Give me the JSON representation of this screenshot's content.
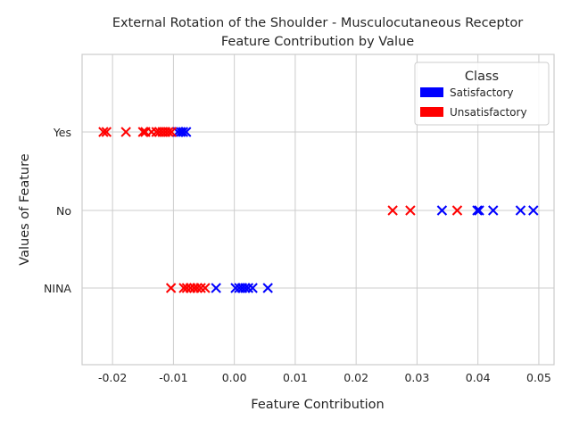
{
  "chart_data": {
    "type": "scatter",
    "title": "External Rotation of the Shoulder - Musculocutaneous Receptor",
    "subtitle": "Feature Contribution by Value",
    "xlabel": "Feature Contribution",
    "ylabel": "Values of Feature",
    "xlim": [
      -0.025,
      0.0525
    ],
    "x_ticks": [
      "-0.02",
      "-0.01",
      "0.00",
      "0.01",
      "0.02",
      "0.03",
      "0.04",
      "0.05"
    ],
    "x_tick_values": [
      -0.02,
      -0.01,
      0.0,
      0.01,
      0.02,
      0.03,
      0.04,
      0.05
    ],
    "categories": [
      "Yes",
      "No",
      "NINA"
    ],
    "grid": true,
    "legend": {
      "title": "Class",
      "placement": "top-right",
      "entries": [
        {
          "label": "Satisfactory",
          "color": "#0000ff"
        },
        {
          "label": "Unsatisfactory",
          "color": "#ff0000"
        }
      ]
    },
    "marker": "x",
    "series": [
      {
        "name": "Satisfactory",
        "color": "#0000ff",
        "points": [
          {
            "category": "Yes",
            "x": -0.0093
          },
          {
            "category": "Yes",
            "x": -0.0088
          },
          {
            "category": "Yes",
            "x": -0.0084
          },
          {
            "category": "Yes",
            "x": -0.0079
          },
          {
            "category": "No",
            "x": 0.0341
          },
          {
            "category": "No",
            "x": 0.0399
          },
          {
            "category": "No",
            "x": 0.0402
          },
          {
            "category": "No",
            "x": 0.0425
          },
          {
            "category": "No",
            "x": 0.047
          },
          {
            "category": "No",
            "x": 0.0491
          },
          {
            "category": "NINA",
            "x": -0.003
          },
          {
            "category": "NINA",
            "x": 0.0002
          },
          {
            "category": "NINA",
            "x": 0.0008
          },
          {
            "category": "NINA",
            "x": 0.0013
          },
          {
            "category": "NINA",
            "x": 0.0018
          },
          {
            "category": "NINA",
            "x": 0.0023
          },
          {
            "category": "NINA",
            "x": 0.003
          },
          {
            "category": "NINA",
            "x": 0.0055
          }
        ]
      },
      {
        "name": "Unsatisfactory",
        "color": "#ff0000",
        "points": [
          {
            "category": "Yes",
            "x": -0.0215
          },
          {
            "category": "Yes",
            "x": -0.021
          },
          {
            "category": "Yes",
            "x": -0.0178
          },
          {
            "category": "Yes",
            "x": -0.015
          },
          {
            "category": "Yes",
            "x": -0.0146
          },
          {
            "category": "Yes",
            "x": -0.0136
          },
          {
            "category": "Yes",
            "x": -0.0128
          },
          {
            "category": "Yes",
            "x": -0.0123
          },
          {
            "category": "Yes",
            "x": -0.0118
          },
          {
            "category": "Yes",
            "x": -0.0113
          },
          {
            "category": "Yes",
            "x": -0.0108
          },
          {
            "category": "Yes",
            "x": -0.0103
          },
          {
            "category": "No",
            "x": 0.026
          },
          {
            "category": "No",
            "x": 0.0289
          },
          {
            "category": "No",
            "x": 0.0366
          },
          {
            "category": "NINA",
            "x": -0.0104
          },
          {
            "category": "NINA",
            "x": -0.0083
          },
          {
            "category": "NINA",
            "x": -0.0078
          },
          {
            "category": "NINA",
            "x": -0.0072
          },
          {
            "category": "NINA",
            "x": -0.0066
          },
          {
            "category": "NINA",
            "x": -0.0061
          },
          {
            "category": "NINA",
            "x": -0.0055
          },
          {
            "category": "NINA",
            "x": -0.0048
          }
        ]
      }
    ]
  }
}
